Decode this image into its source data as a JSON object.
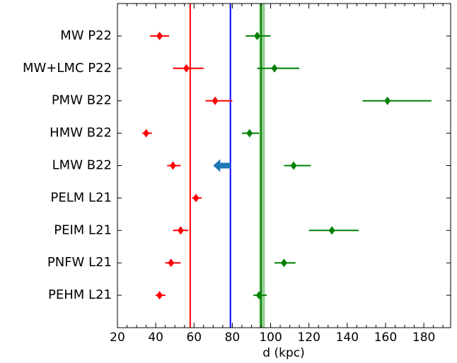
{
  "chart_data": {
    "type": "errorbar",
    "xlabel": "d (kpc)",
    "categories": [
      "MW P22",
      "MW+LMC P22",
      "PMW B22",
      "HMW B22",
      "LMW B22",
      "PELM L21",
      "PEIM L21",
      "PNFW L21",
      "PEHM L21"
    ],
    "series": [
      {
        "color": "#ff0000",
        "values": [
          42,
          56,
          71,
          35,
          49,
          61,
          53,
          48,
          42
        ],
        "err_low": [
          5,
          7,
          5,
          2,
          3,
          2,
          4,
          3,
          2
        ],
        "err_high": [
          5,
          9,
          9,
          3,
          4,
          3,
          4,
          5,
          3
        ]
      },
      {
        "color": "#008000",
        "values": [
          93,
          102,
          161,
          89,
          112,
          null,
          132,
          107,
          94
        ],
        "err_low": [
          6,
          9,
          13,
          4,
          5,
          null,
          12,
          5,
          3
        ],
        "err_high": [
          7,
          13,
          23,
          5,
          9,
          null,
          14,
          6,
          4
        ]
      }
    ],
    "vlines": [
      {
        "value": 58,
        "color": "#ff0000"
      },
      {
        "value": 79,
        "color": "#0000ff"
      },
      {
        "value": 95,
        "color": "#008000"
      }
    ],
    "band": {
      "range": [
        94,
        97
      ],
      "color": "#2ca02c"
    },
    "arrow": {
      "category_index": 4,
      "from": 79,
      "to": 70,
      "color": "#1f77b4"
    },
    "xlim": [
      20,
      194
    ],
    "xticks": [
      20,
      40,
      60,
      80,
      100,
      120,
      140,
      160,
      180
    ],
    "xminorticks": [
      25,
      30,
      35,
      45,
      50,
      55,
      65,
      70,
      75,
      85,
      90,
      95,
      105,
      110,
      115,
      125,
      130,
      135,
      145,
      150,
      155,
      165,
      170,
      175,
      185,
      190
    ]
  }
}
